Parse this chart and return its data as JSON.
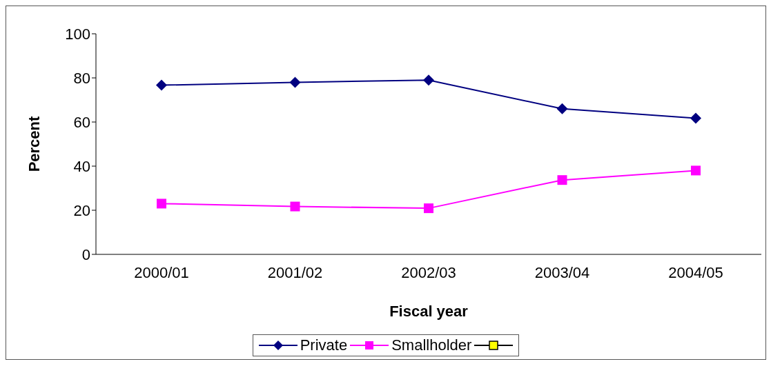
{
  "chart_data": {
    "type": "line",
    "xlabel": "Fiscal year",
    "ylabel": "Percent",
    "categories": [
      "2000/01",
      "2001/02",
      "2002/03",
      "2003/04",
      "2004/05"
    ],
    "series": [
      {
        "name": "Private",
        "color": "#000080",
        "marker": "diamond",
        "values": [
          76.7,
          78,
          79,
          66,
          61.7
        ]
      },
      {
        "name": "Smallholder",
        "color": "#ff00ff",
        "marker": "square",
        "values": [
          23,
          21.7,
          20.9,
          33.7,
          38
        ]
      },
      {
        "color": "#ffff00",
        "marker": "square",
        "values": [
          null,
          null,
          null,
          null,
          null
        ]
      }
    ],
    "ylim": [
      0,
      100
    ],
    "yticks": [
      0,
      20,
      40,
      60,
      80,
      100
    ],
    "grid": false,
    "legend": "bottom"
  }
}
